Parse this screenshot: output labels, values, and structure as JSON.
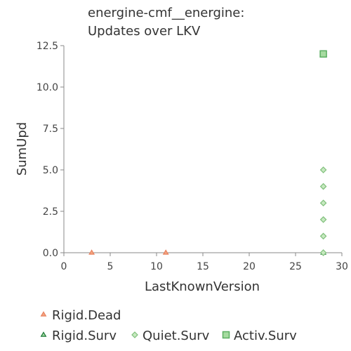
{
  "chart_data": {
    "type": "scatter",
    "title_lines": [
      "energine-cmf__energine:",
      "Updates over LKV"
    ],
    "xlabel": "LastKnownVersion",
    "ylabel": "SumUpd",
    "xlim": [
      0,
      30
    ],
    "ylim": [
      0,
      12.5
    ],
    "x_ticks": [
      0,
      5,
      10,
      15,
      20,
      25,
      30
    ],
    "x_tick_labels": [
      "0",
      "5",
      "10",
      "15",
      "20",
      "25",
      "30"
    ],
    "y_ticks": [
      0,
      2.5,
      5,
      7.5,
      10,
      12.5
    ],
    "y_tick_labels": [
      "0.0",
      "2.5",
      "5.0",
      "7.5",
      "10.0",
      "12.5"
    ],
    "grid": false,
    "legend_position": "bottom",
    "series": [
      {
        "name": "Rigid.Dead",
        "marker": "triangle",
        "color": "#f4a582",
        "stroke": "#e8825f",
        "points": [
          {
            "x": 3,
            "y": 0
          },
          {
            "x": 11,
            "y": 0
          }
        ]
      },
      {
        "name": "Rigid.Surv",
        "marker": "triangle",
        "color": "#a6dba0",
        "stroke": "#1b7837",
        "points": [
          {
            "x": 28,
            "y": 0
          }
        ]
      },
      {
        "name": "Quiet.Surv",
        "marker": "diamond",
        "color": "#c7e9c0",
        "stroke": "#7fbf7b",
        "points": [
          {
            "x": 28,
            "y": 5
          },
          {
            "x": 28,
            "y": 4
          },
          {
            "x": 28,
            "y": 3
          },
          {
            "x": 28,
            "y": 2
          },
          {
            "x": 28,
            "y": 1
          },
          {
            "x": 28,
            "y": 0
          }
        ]
      },
      {
        "name": "Activ.Surv",
        "marker": "square",
        "color": "#a6dba0",
        "stroke": "#5aae61",
        "points": [
          {
            "x": 28,
            "y": 12
          }
        ]
      }
    ]
  }
}
